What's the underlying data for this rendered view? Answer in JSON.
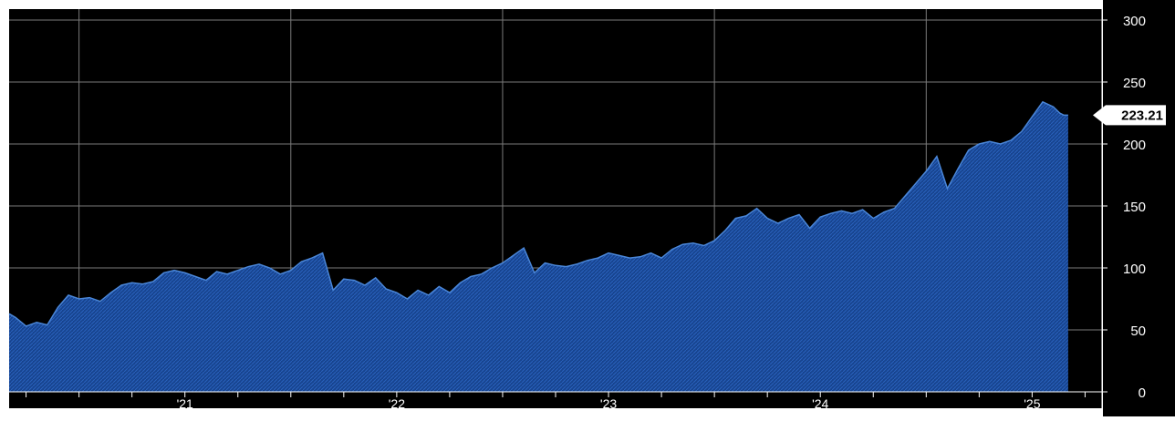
{
  "chart_data": {
    "type": "area",
    "title": "",
    "xlabel": "",
    "ylabel": "",
    "ylim": [
      0,
      300
    ],
    "yticks": [
      0,
      50,
      100,
      150,
      200,
      250,
      300
    ],
    "xlim": [
      2020.17,
      2025.33
    ],
    "x_tick_labels": [
      {
        "label": "'21",
        "x": 2021.0
      },
      {
        "label": "'22",
        "x": 2022.0
      },
      {
        "label": "'23",
        "x": 2023.0
      },
      {
        "label": "'24",
        "x": 2024.0
      },
      {
        "label": "'25",
        "x": 2025.0
      }
    ],
    "grid": true,
    "grid_x_positions": [
      2020.5,
      2021.5,
      2022.5,
      2023.5,
      2024.5
    ],
    "last_value_label": "223.21",
    "colors": {
      "background": "#000000",
      "fill": "#1a4b99",
      "line": "#4a86d8",
      "grid": "#7a7a7a",
      "label_bg": "#ffffff",
      "label_text": "#000000"
    },
    "series": [
      {
        "x": [
          2020.17,
          2020.2,
          2020.25,
          2020.3,
          2020.35,
          2020.4,
          2020.45,
          2020.5,
          2020.55,
          2020.6,
          2020.65,
          2020.7,
          2020.75,
          2020.8,
          2020.85,
          2020.9,
          2020.95,
          2021.0,
          2021.05,
          2021.1,
          2021.15,
          2021.2,
          2021.25,
          2021.3,
          2021.35,
          2021.4,
          2021.45,
          2021.5,
          2021.55,
          2021.6,
          2021.65,
          2021.7,
          2021.75,
          2021.8,
          2021.85,
          2021.9,
          2021.95,
          2022.0,
          2022.05,
          2022.1,
          2022.15,
          2022.2,
          2022.25,
          2022.3,
          2022.35,
          2022.4,
          2022.45,
          2022.5,
          2022.55,
          2022.6,
          2022.65,
          2022.7,
          2022.75,
          2022.8,
          2022.85,
          2022.9,
          2022.95,
          2023.0,
          2023.05,
          2023.1,
          2023.15,
          2023.2,
          2023.25,
          2023.3,
          2023.35,
          2023.4,
          2023.45,
          2023.5,
          2023.55,
          2023.6,
          2023.65,
          2023.7,
          2023.75,
          2023.8,
          2023.85,
          2023.9,
          2023.95,
          2024.0,
          2024.05,
          2024.1,
          2024.15,
          2024.2,
          2024.25,
          2024.3,
          2024.35,
          2024.4,
          2024.45,
          2024.5,
          2024.55,
          2024.6,
          2024.65,
          2024.7,
          2024.75,
          2024.8,
          2024.85,
          2024.9,
          2024.95,
          2025.0,
          2025.05,
          2025.1,
          2025.13,
          2025.15,
          2025.17
        ],
        "values": [
          63,
          60,
          53,
          56,
          54,
          68,
          78,
          75,
          76,
          73,
          80,
          86,
          88,
          87,
          89,
          96,
          98,
          96,
          93,
          90,
          97,
          95,
          98,
          101,
          103,
          100,
          95,
          98,
          105,
          108,
          112,
          82,
          91,
          90,
          86,
          92,
          83,
          80,
          75,
          82,
          78,
          85,
          80,
          88,
          93,
          95,
          100,
          104,
          110,
          116,
          96,
          104,
          102,
          101,
          103,
          106,
          108,
          112,
          110,
          108,
          109,
          112,
          108,
          115,
          119,
          120,
          118,
          122,
          130,
          140,
          142,
          148,
          140,
          136,
          140,
          143,
          132,
          141,
          144,
          146,
          144,
          147,
          140,
          145,
          148,
          158,
          168,
          178,
          190,
          164,
          180,
          195,
          200,
          202,
          200,
          203,
          210,
          222,
          234,
          230,
          225,
          223.21,
          223.21
        ]
      }
    ]
  }
}
